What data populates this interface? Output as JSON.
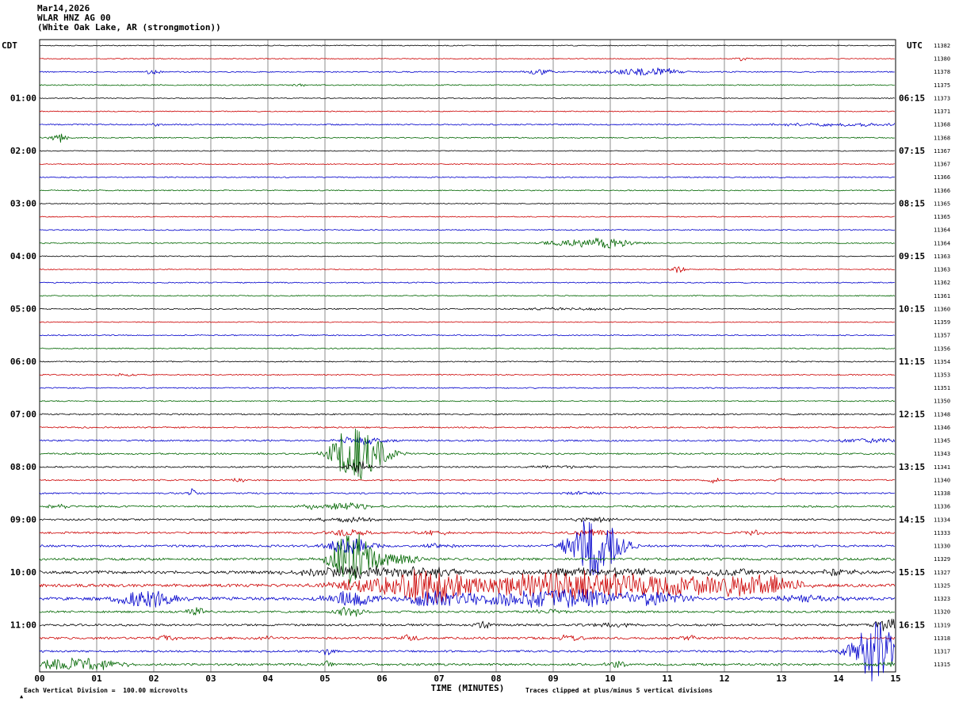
{
  "header": {
    "date": "Mar14,2026",
    "station": "WLAR HNZ AG 00",
    "location": "(White Oak Lake, AR (strongmotion))"
  },
  "axes": {
    "left_tz": "CDT",
    "right_tz": "UTC"
  },
  "x_axis": {
    "title": "TIME (MINUTES)",
    "ticks": [
      "00",
      "01",
      "02",
      "03",
      "04",
      "05",
      "06",
      "07",
      "08",
      "09",
      "10",
      "11",
      "12",
      "13",
      "14",
      "15"
    ]
  },
  "footer": {
    "scale_note": "Each Vertical Division =  100.00 microvolts",
    "clip_note": "Traces clipped at plus/minus 5 vertical divisions"
  },
  "chart_data": {
    "type": "line",
    "variant": "helicorder",
    "minutes_per_row": 15,
    "x_range_minutes": [
      0,
      15
    ],
    "division_microvolts": 100.0,
    "clip_divisions": 5,
    "grid": "vertical-lines-every-minute",
    "trace_colors": {
      "black": "#000000",
      "red": "#cc0000",
      "blue": "#0000cc",
      "green": "#006600"
    },
    "color_cycle": [
      "black",
      "red",
      "blue",
      "green"
    ],
    "hour_labels": [
      {
        "row": 4,
        "cdt": "01:00",
        "utc": "06:15"
      },
      {
        "row": 8,
        "cdt": "02:00",
        "utc": "07:15"
      },
      {
        "row": 12,
        "cdt": "03:00",
        "utc": "08:15"
      },
      {
        "row": 16,
        "cdt": "04:00",
        "utc": "09:15"
      },
      {
        "row": 20,
        "cdt": "05:00",
        "utc": "10:15"
      },
      {
        "row": 24,
        "cdt": "06:00",
        "utc": "11:15"
      },
      {
        "row": 28,
        "cdt": "07:00",
        "utc": "12:15"
      },
      {
        "row": 32,
        "cdt": "08:00",
        "utc": "13:15"
      },
      {
        "row": 36,
        "cdt": "09:00",
        "utc": "14:15"
      },
      {
        "row": 40,
        "cdt": "10:00",
        "utc": "15:15"
      },
      {
        "row": 44,
        "cdt": "11:00",
        "utc": "16:15"
      }
    ],
    "trace_numbers": [
      11382,
      11380,
      11378,
      11375,
      11373,
      11371,
      11368,
      11368,
      11367,
      11367,
      11366,
      11366,
      11365,
      11365,
      11364,
      11364,
      11363,
      11363,
      11362,
      11361,
      11360,
      11359,
      11357,
      11356,
      11354,
      11353,
      11351,
      11350,
      11348,
      11346,
      11345,
      11343,
      11341,
      11340,
      11338,
      11336,
      11334,
      11333,
      11330,
      11329,
      11327,
      11325,
      11323,
      11320,
      11319,
      11318,
      11317,
      11315
    ],
    "event_fields": "[minute, amplitude_px, halfwidth_min]",
    "rows": [
      {
        "start": "00:00",
        "color": "black",
        "noise": 0.6,
        "events": []
      },
      {
        "start": "00:15",
        "color": "red",
        "noise": 0.6,
        "events": [
          [
            12.3,
            2,
            0.1
          ]
        ]
      },
      {
        "start": "00:30",
        "color": "blue",
        "noise": 0.7,
        "events": [
          [
            2.0,
            2.5,
            0.12
          ],
          [
            8.8,
            3,
            0.2
          ],
          [
            10.5,
            3.5,
            0.45
          ],
          [
            10.9,
            3,
            0.2
          ]
        ]
      },
      {
        "start": "00:45",
        "color": "green",
        "noise": 0.7,
        "events": [
          [
            4.6,
            1.5,
            0.1
          ]
        ]
      },
      {
        "start": "01:00",
        "color": "black",
        "noise": 0.6,
        "events": []
      },
      {
        "start": "01:15",
        "color": "red",
        "noise": 0.6,
        "events": []
      },
      {
        "start": "01:30",
        "color": "blue",
        "noise": 0.8,
        "events": [
          [
            2.0,
            1.5,
            0.1
          ],
          [
            14.0,
            2,
            0.8
          ]
        ]
      },
      {
        "start": "01:45",
        "color": "green",
        "noise": 0.7,
        "events": [
          [
            0.35,
            5,
            0.12
          ]
        ]
      },
      {
        "start": "02:00",
        "color": "black",
        "noise": 0.6,
        "events": []
      },
      {
        "start": "02:15",
        "color": "red",
        "noise": 0.6,
        "events": []
      },
      {
        "start": "02:30",
        "color": "blue",
        "noise": 0.7,
        "events": []
      },
      {
        "start": "02:45",
        "color": "green",
        "noise": 0.7,
        "events": []
      },
      {
        "start": "03:00",
        "color": "black",
        "noise": 0.6,
        "events": []
      },
      {
        "start": "03:15",
        "color": "red",
        "noise": 0.6,
        "events": []
      },
      {
        "start": "03:30",
        "color": "blue",
        "noise": 0.7,
        "events": []
      },
      {
        "start": "03:45",
        "color": "green",
        "noise": 0.7,
        "events": [
          [
            9.6,
            4.5,
            0.55
          ],
          [
            10.0,
            2.5,
            0.3
          ]
        ]
      },
      {
        "start": "04:00",
        "color": "black",
        "noise": 0.6,
        "events": []
      },
      {
        "start": "04:15",
        "color": "red",
        "noise": 0.6,
        "events": [
          [
            11.2,
            4.5,
            0.07
          ]
        ]
      },
      {
        "start": "04:30",
        "color": "blue",
        "noise": 0.7,
        "events": []
      },
      {
        "start": "04:45",
        "color": "green",
        "noise": 0.7,
        "events": []
      },
      {
        "start": "05:00",
        "color": "black",
        "noise": 0.7,
        "events": [
          [
            9.3,
            1.5,
            0.6
          ]
        ]
      },
      {
        "start": "05:15",
        "color": "red",
        "noise": 0.6,
        "events": []
      },
      {
        "start": "05:30",
        "color": "blue",
        "noise": 0.7,
        "events": []
      },
      {
        "start": "05:45",
        "color": "green",
        "noise": 0.7,
        "events": []
      },
      {
        "start": "06:00",
        "color": "black",
        "noise": 0.7,
        "events": []
      },
      {
        "start": "06:15",
        "color": "red",
        "noise": 0.7,
        "events": [
          [
            1.5,
            1.5,
            0.2
          ]
        ]
      },
      {
        "start": "06:30",
        "color": "blue",
        "noise": 0.7,
        "events": []
      },
      {
        "start": "06:45",
        "color": "green",
        "noise": 0.7,
        "events": []
      },
      {
        "start": "07:00",
        "color": "black",
        "noise": 0.9,
        "events": []
      },
      {
        "start": "07:15",
        "color": "red",
        "noise": 0.9,
        "events": []
      },
      {
        "start": "07:30",
        "color": "blue",
        "noise": 1.0,
        "events": [
          [
            5.65,
            5,
            0.3
          ],
          [
            14.5,
            2.5,
            0.5
          ]
        ]
      },
      {
        "start": "07:45",
        "color": "green",
        "noise": 1.0,
        "events": [
          [
            5.3,
            8,
            0.2
          ],
          [
            5.55,
            26,
            0.25
          ],
          [
            5.95,
            8,
            0.25
          ]
        ]
      },
      {
        "start": "08:00",
        "color": "black",
        "noise": 0.9,
        "events": [
          [
            5.6,
            7,
            0.15
          ],
          [
            9.0,
            1.5,
            0.4
          ]
        ]
      },
      {
        "start": "08:15",
        "color": "red",
        "noise": 0.9,
        "events": [
          [
            3.5,
            2.5,
            0.1
          ],
          [
            11.8,
            3.5,
            0.1
          ],
          [
            13.0,
            2,
            0.08
          ]
        ]
      },
      {
        "start": "08:30",
        "color": "blue",
        "noise": 0.9,
        "events": [
          [
            2.7,
            6,
            0.08
          ],
          [
            9.6,
            2,
            0.3
          ]
        ]
      },
      {
        "start": "08:45",
        "color": "green",
        "noise": 1.1,
        "events": [
          [
            0.3,
            2,
            0.2
          ],
          [
            4.7,
            2.5,
            0.15
          ],
          [
            5.4,
            4.5,
            0.3
          ]
        ]
      },
      {
        "start": "09:00",
        "color": "black",
        "noise": 1.1,
        "events": [
          [
            5.5,
            2.5,
            0.5
          ],
          [
            9.7,
            2.5,
            0.3
          ]
        ]
      },
      {
        "start": "09:15",
        "color": "red",
        "noise": 1.2,
        "events": [
          [
            5.4,
            3.5,
            0.3
          ],
          [
            6.9,
            3,
            0.2
          ],
          [
            9.7,
            3.5,
            0.3
          ],
          [
            12.5,
            2.5,
            0.2
          ]
        ]
      },
      {
        "start": "09:30",
        "color": "blue",
        "noise": 1.3,
        "events": [
          [
            5.45,
            9,
            0.3
          ],
          [
            7.0,
            3,
            0.2
          ],
          [
            9.65,
            26,
            0.28
          ],
          [
            9.95,
            12,
            0.3
          ]
        ]
      },
      {
        "start": "09:45",
        "color": "green",
        "noise": 1.5,
        "events": [
          [
            5.45,
            28,
            0.22
          ],
          [
            5.75,
            9,
            0.35
          ],
          [
            6.5,
            3,
            0.3
          ]
        ]
      },
      {
        "start": "10:00",
        "color": "black",
        "noise": 1.8,
        "events": [
          [
            5.6,
            7,
            0.7
          ],
          [
            6.9,
            5,
            0.3
          ],
          [
            9.8,
            5,
            0.9
          ],
          [
            12.1,
            3.5,
            0.4
          ],
          [
            14.0,
            3,
            0.3
          ]
        ]
      },
      {
        "start": "10:15",
        "color": "red",
        "noise": 2.0,
        "events": [
          [
            5.9,
            9,
            0.5
          ],
          [
            6.85,
            20,
            0.35
          ],
          [
            8.4,
            9,
            1.0
          ],
          [
            9.9,
            13,
            0.9
          ],
          [
            11.3,
            6,
            0.4
          ],
          [
            12.3,
            11,
            0.5
          ],
          [
            13.0,
            5,
            0.3
          ]
        ]
      },
      {
        "start": "10:30",
        "color": "blue",
        "noise": 2.0,
        "events": [
          [
            1.85,
            11,
            0.4
          ],
          [
            5.45,
            9,
            0.3
          ],
          [
            6.9,
            9,
            0.4
          ],
          [
            8.0,
            5,
            0.5
          ],
          [
            9.3,
            11,
            0.7
          ],
          [
            10.9,
            7,
            0.4
          ],
          [
            13.5,
            4,
            0.4
          ]
        ]
      },
      {
        "start": "10:45",
        "color": "green",
        "noise": 1.3,
        "events": [
          [
            2.75,
            7,
            0.12
          ],
          [
            5.45,
            7,
            0.15
          ],
          [
            9.0,
            2.5,
            0.3
          ]
        ]
      },
      {
        "start": "11:00",
        "color": "black",
        "noise": 1.3,
        "events": [
          [
            7.75,
            5,
            0.1
          ],
          [
            10.0,
            2.5,
            0.3
          ],
          [
            14.85,
            8,
            0.15
          ]
        ]
      },
      {
        "start": "11:15",
        "color": "red",
        "noise": 1.4,
        "events": [
          [
            2.2,
            3.5,
            0.12
          ],
          [
            4.0,
            2.5,
            0.1
          ],
          [
            6.5,
            3.5,
            0.15
          ],
          [
            9.3,
            4,
            0.15
          ],
          [
            11.4,
            3.5,
            0.12
          ]
        ]
      },
      {
        "start": "11:30",
        "color": "blue",
        "noise": 1.2,
        "events": [
          [
            5.05,
            5,
            0.08
          ],
          [
            14.55,
            10,
            0.2
          ],
          [
            14.8,
            30,
            0.35
          ]
        ]
      },
      {
        "start": "11:45",
        "color": "green",
        "noise": 1.4,
        "events": [
          [
            0.5,
            7,
            0.45
          ],
          [
            1.1,
            4,
            0.3
          ],
          [
            5.05,
            5,
            0.08
          ],
          [
            10.1,
            4.5,
            0.12
          ],
          [
            14.8,
            3,
            0.2
          ]
        ]
      }
    ]
  }
}
